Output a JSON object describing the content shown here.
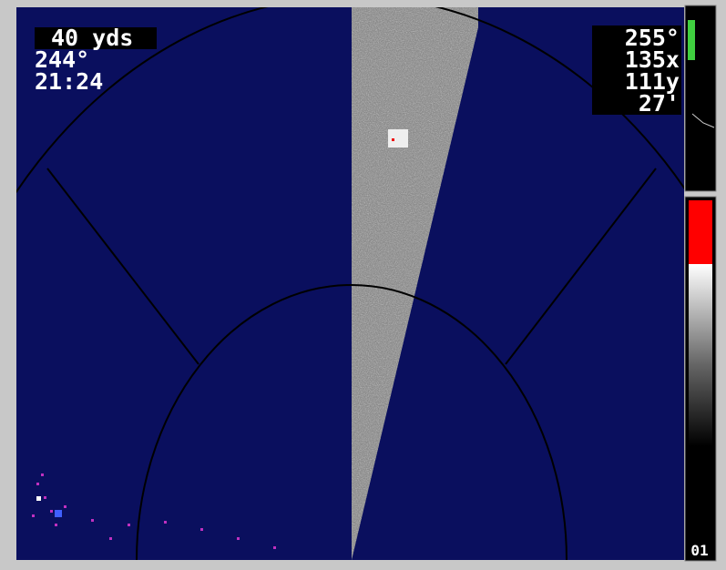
{
  "display": {
    "range": "40 yds",
    "heading_left": "244°",
    "time": "21:24",
    "heading_right": "255°",
    "x_pos": "135x",
    "y_pos": "111y",
    "depth": "27'",
    "scale_label": "01"
  }
}
